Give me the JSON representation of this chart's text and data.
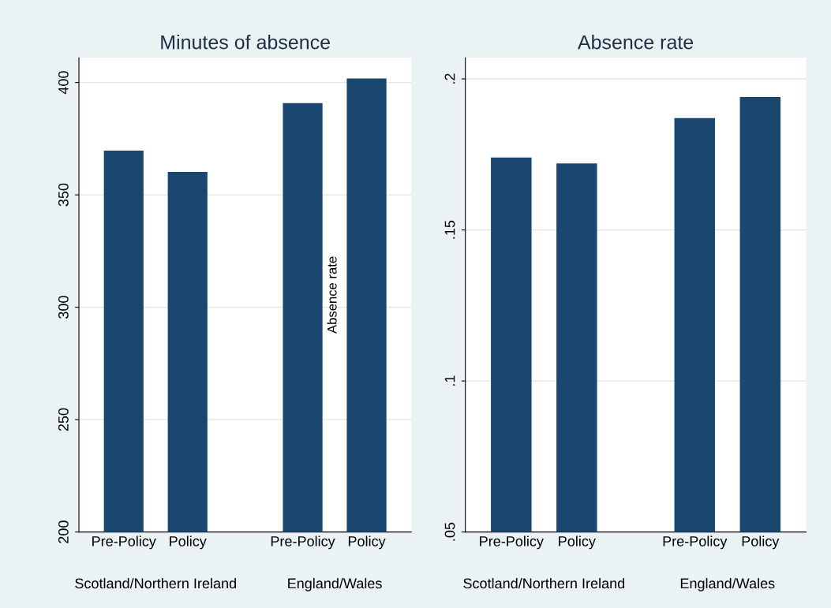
{
  "chart_data": [
    {
      "type": "bar",
      "title": "Minutes of absence",
      "categories": [
        "Pre-Policy",
        "Policy",
        "Pre-Policy",
        "Policy"
      ],
      "values": [
        369.7,
        360.2,
        390.8,
        401.8
      ],
      "color": "#1a476f",
      "ylim": [
        200,
        411
      ],
      "yticks": [
        200,
        250,
        300,
        350,
        400
      ],
      "grid": "y",
      "annotations": [
        "Scotland/Northern Ireland",
        "England/Wales"
      ]
    },
    {
      "type": "bar",
      "title": "Absence rate",
      "ylabel": "Absence rate",
      "categories": [
        "Pre-Policy",
        "Policy",
        "Pre-Policy",
        "Policy"
      ],
      "values": [
        0.174,
        0.172,
        0.187,
        0.194
      ],
      "color": "#1a476f",
      "ylim": [
        0.05,
        0.207
      ],
      "yticks": [
        {
          "value": 0.05,
          "label": ".05"
        },
        {
          "value": 0.1,
          "label": ".1"
        },
        {
          "value": 0.15,
          "label": ".15"
        },
        {
          "value": 0.2,
          "label": ".2"
        }
      ],
      "grid": "y",
      "annotations": [
        "Scotland/Northern Ireland",
        "England/Wales"
      ]
    }
  ]
}
